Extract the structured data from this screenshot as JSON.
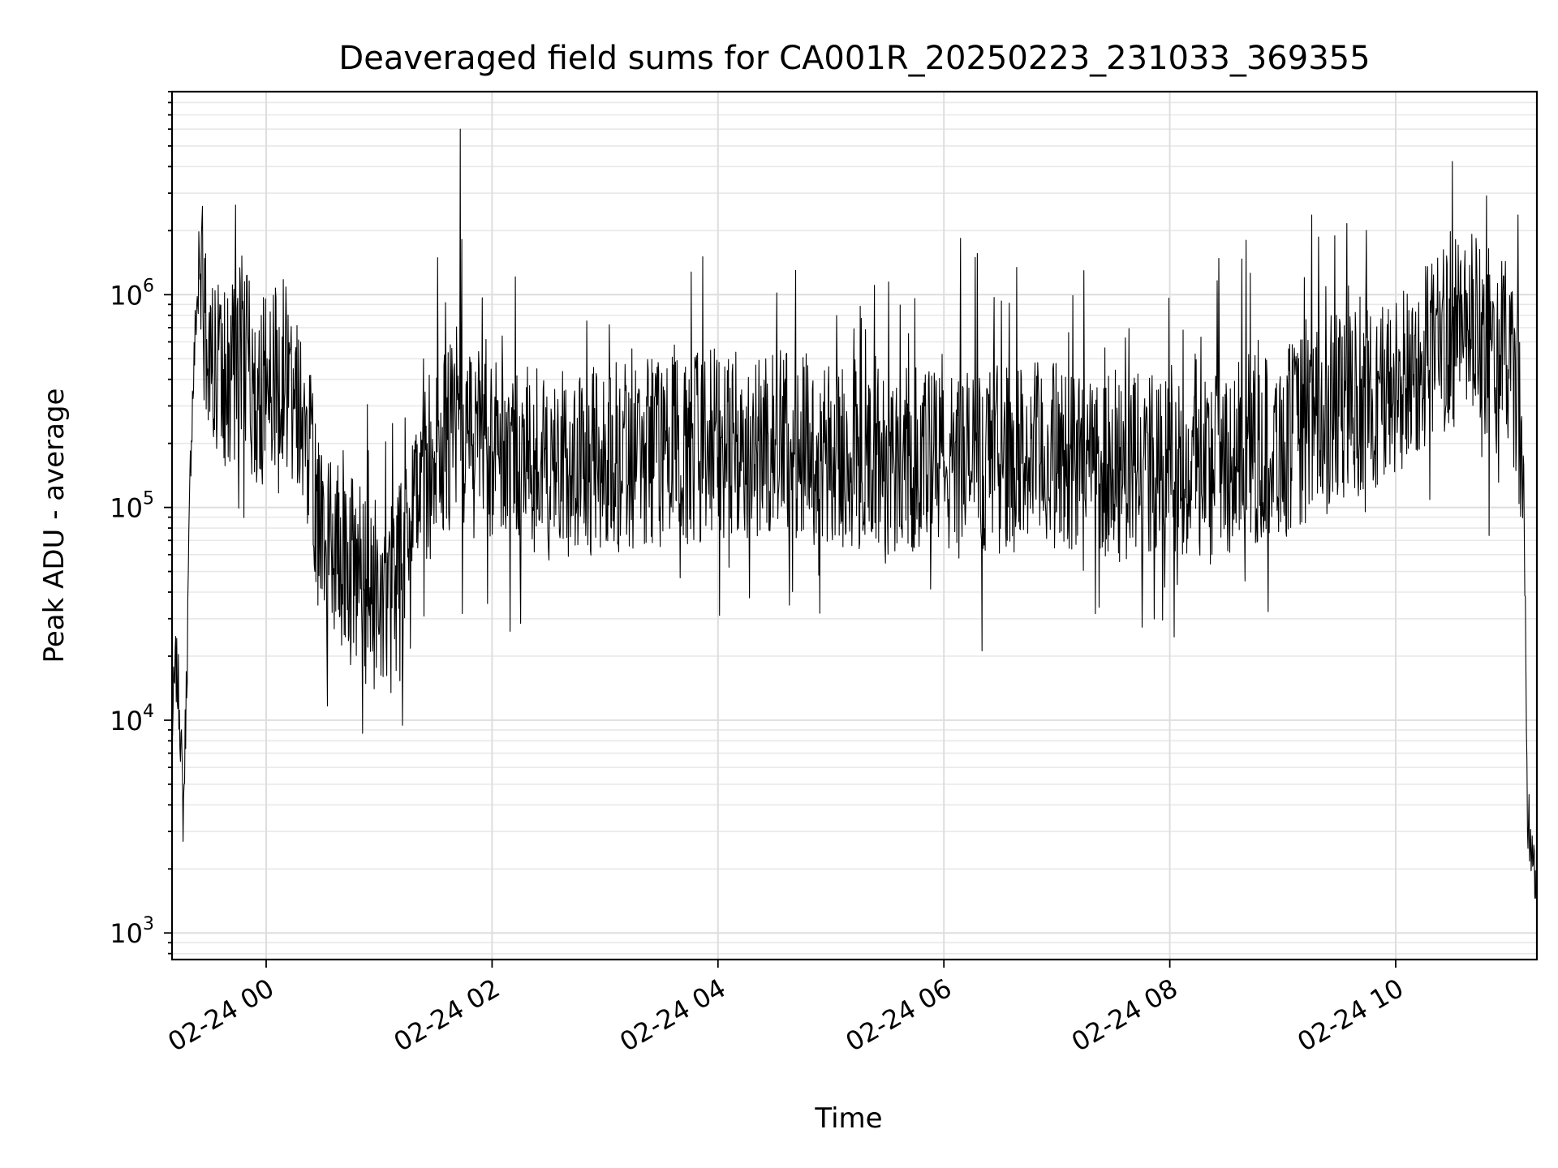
{
  "chart_data": {
    "type": "line",
    "title": "Deaveraged field sums for CA001R_20250223_231033_369355",
    "xlabel": "Time",
    "ylabel": "Peak ADU - average",
    "x_scale": "time",
    "y_scale": "log",
    "xlim": [
      "2025-02-23 23:10",
      "2025-02-24 11:15"
    ],
    "ylim": [
      750,
      9000000
    ],
    "grid": "both (major and minor)",
    "x_ticks": [
      "02-24 00",
      "02-24 02",
      "02-24 04",
      "02-24 06",
      "02-24 08",
      "02-24 10"
    ],
    "y_ticks": [
      {
        "base": "10",
        "exp": "3",
        "value": 1000
      },
      {
        "base": "10",
        "exp": "4",
        "value": 10000
      },
      {
        "base": "10",
        "exp": "5",
        "value": 100000
      },
      {
        "base": "10",
        "exp": "6",
        "value": 1000000
      }
    ],
    "series": [
      {
        "color": "#000000",
        "x": [
          "2025-02-23 23:10",
          "2025-02-23 23:12",
          "2025-02-23 23:14",
          "2025-02-23 23:16",
          "2025-02-23 23:18",
          "2025-02-23 23:20",
          "2025-02-23 23:23",
          "2025-02-23 23:26",
          "2025-02-23 23:30",
          "2025-02-23 23:35",
          "2025-02-23 23:40",
          "2025-02-23 23:45",
          "2025-02-23 23:50",
          "2025-02-23 23:55",
          "2025-02-24 00:00",
          "2025-02-24 00:10",
          "2025-02-24 00:20",
          "2025-02-24 00:28",
          "2025-02-24 00:35",
          "2025-02-24 00:45",
          "2025-02-24 00:55",
          "2025-02-24 01:05",
          "2025-02-24 01:15",
          "2025-02-24 01:25",
          "2025-02-24 01:35",
          "2025-02-24 01:43",
          "2025-02-24 01:50",
          "2025-02-24 02:00",
          "2025-02-24 02:30",
          "2025-02-24 03:00",
          "2025-02-24 03:30",
          "2025-02-24 04:00",
          "2025-02-24 04:30",
          "2025-02-24 05:00",
          "2025-02-24 05:30",
          "2025-02-24 06:00",
          "2025-02-24 06:30",
          "2025-02-24 07:00",
          "2025-02-24 07:30",
          "2025-02-24 08:00",
          "2025-02-24 08:30",
          "2025-02-24 09:00",
          "2025-02-24 09:30",
          "2025-02-24 10:00",
          "2025-02-24 10:20",
          "2025-02-24 10:40",
          "2025-02-24 11:00",
          "2025-02-24 11:05",
          "2025-02-24 11:08",
          "2025-02-24 11:10",
          "2025-02-24 11:12",
          "2025-02-24 11:15"
        ],
        "y": [
          9000,
          18000,
          12000,
          3500,
          20000,
          200000,
          900000,
          1100000,
          500000,
          400000,
          350000,
          500000,
          450000,
          300000,
          400000,
          450000,
          300000,
          80000,
          60000,
          50000,
          40000,
          35000,
          60000,
          150000,
          200000,
          220000,
          250000,
          200000,
          150000,
          170000,
          180000,
          200000,
          200000,
          180000,
          170000,
          160000,
          170000,
          175000,
          160000,
          150000,
          170000,
          200000,
          300000,
          350000,
          600000,
          700000,
          500000,
          350000,
          120000,
          3500,
          2500,
          1600
        ]
      }
    ]
  }
}
